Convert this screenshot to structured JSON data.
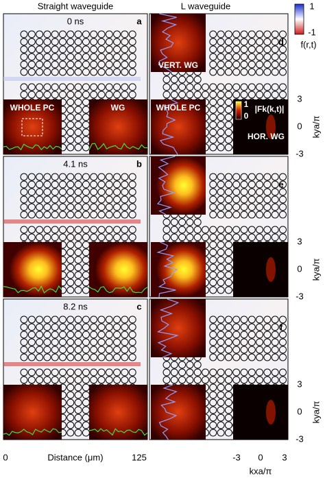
{
  "headers": [
    "Straight waveguide",
    "L waveguide"
  ],
  "panels": [
    {
      "letter": "a",
      "time": "0 ns",
      "labels": [
        "WHOLE PC",
        "WG"
      ]
    },
    {
      "letter": "b",
      "time": "4.1 ns"
    },
    {
      "letter": "c",
      "time": "8.2 ns"
    },
    {
      "letter": "d",
      "labels": [
        "VERT. WG",
        "WHOLE PC",
        "HOR. WG"
      ]
    },
    {
      "letter": "e"
    },
    {
      "letter": "f"
    }
  ],
  "field_colorbar": {
    "max": 1,
    "min": -1,
    "label": "f(r,t)"
  },
  "fourier_colorbar": {
    "max": 1,
    "min": 0,
    "label": "|Fk(k,t)|"
  },
  "ky_axis": {
    "ticks": [
      3,
      0,
      -3
    ],
    "label": "kya/π"
  },
  "kx_axis": {
    "ticks": [
      -3,
      0,
      3
    ],
    "label": "kxa/π"
  },
  "distance_axis": {
    "ticks": [
      0,
      125
    ],
    "label": "Distance (μm)"
  }
}
